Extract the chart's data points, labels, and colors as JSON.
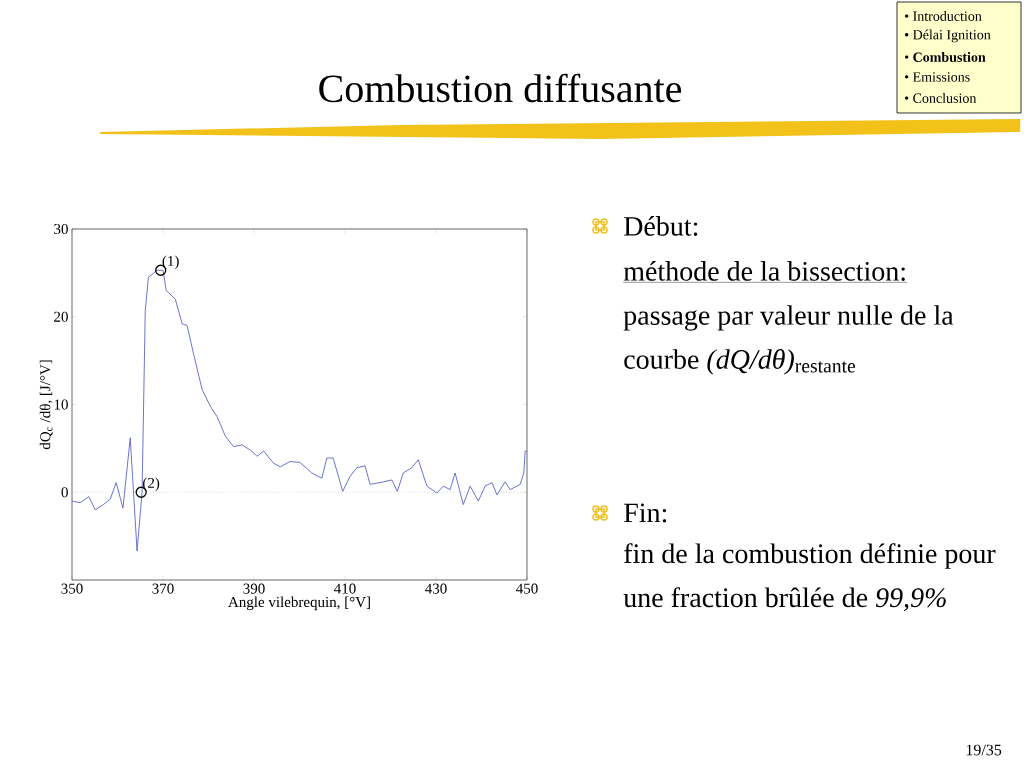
{
  "chart_data": {
    "type": "line",
    "title": "Combustion diffusante",
    "xlabel": "Angle vilebrequin, [°V]",
    "ylabel": "dQ$_{c}$ /dθ, [J/°V]",
    "xlim": [
      350,
      450
    ],
    "ylim": [
      -10,
      30
    ],
    "xticks": [
      350,
      370,
      390,
      410,
      430,
      450
    ],
    "yticks": [
      0,
      10,
      20,
      30
    ],
    "ref_lines": [
      {
        "axis": "y",
        "value": 0,
        "color": "#c8c8c8",
        "line_style": "dotted"
      }
    ],
    "series": [
      {
        "type": "line",
        "color": "#5a64c8",
        "x": [
          350,
          351.8,
          353.7,
          355.1,
          356.9,
          358.4,
          359.7,
          361.2,
          362.8,
          364.3,
          365.4,
          366.1,
          366.8,
          368.7,
          370,
          370.7,
          372.7,
          374.2,
          375.3,
          376.7,
          378.6,
          380.4,
          381.9,
          383.7,
          385.5,
          387.4,
          389.2,
          390.7,
          392.1,
          394.3,
          395.8,
          397.9,
          400.1,
          402.7,
          404.9,
          406,
          407.4,
          409.5,
          411.1,
          412.6,
          414.4,
          415.5,
          417.7,
          420.3,
          421.5,
          422.8,
          424.7,
          426.1,
          428,
          430.2,
          431.6,
          433.1,
          434.2,
          436,
          437.5,
          439.3,
          440.8,
          442.3,
          443.4,
          445.2,
          446.3,
          448.5,
          449.3,
          449.6,
          450
        ],
        "values": [
          -1.0,
          -1.2,
          -0.5,
          -2.0,
          -1.4,
          -0.8,
          1.1,
          -1.8,
          6.2,
          -6.7,
          0,
          20.7,
          24.5,
          25.3,
          25.3,
          23,
          22,
          19.2,
          19.0,
          15.8,
          11.7,
          9.8,
          8.6,
          6.4,
          5.2,
          5.4,
          4.8,
          4.1,
          4.7,
          3.3,
          2.9,
          3.5,
          3.4,
          2.2,
          1.6,
          3.9,
          3.9,
          0.1,
          1.8,
          2.8,
          3.0,
          0.9,
          1.1,
          1.4,
          0.1,
          2.2,
          2.8,
          3.7,
          0.7,
          -0.1,
          0.7,
          0.3,
          2.2,
          -1.4,
          0.7,
          -1.0,
          0.7,
          1.1,
          -0.3,
          1.2,
          0.3,
          0.9,
          2.2,
          4.7,
          4.7
        ]
      },
      {
        "type": "scatter",
        "marker": "circle",
        "color": "#000000",
        "x": [
          369.5,
          365.2
        ],
        "values": [
          25.3,
          0
        ]
      }
    ],
    "annotations": [
      "• Introduction",
      "• Délai Ignition",
      "• **Combustion**",
      "• Emissions",
      "• Conclusion",
      "Début:",
      "méthode de la bissection:",
      "passage par valeur nulle de la courbe *(dQ/dθ)*$_{restante}$",
      "Fin:",
      "fin de la combustion définie pour une fraction brûlée de *99,9%*",
      "19/35",
      {
        "text": "(1)",
        "x": 369.5,
        "y": 25.3
      },
      {
        "text": "(2)",
        "x": 365.2,
        "y": 0
      }
    ]
  }
}
